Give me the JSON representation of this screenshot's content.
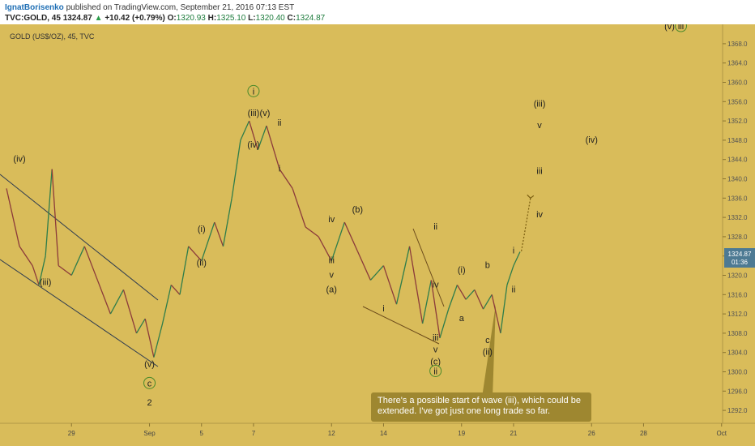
{
  "header": {
    "author": "IgnatBorisenko",
    "published": " published on TradingView.com, September 21, 2016 07:13 EST",
    "ticker": "TVC:GOLD, 45",
    "last": "1324.87",
    "change_arrow": "▲",
    "change": "+10.42 (+0.79%)",
    "o_label": "O:",
    "o": "1320.93",
    "h_label": "H:",
    "h": "1325.10",
    "l_label": "L:",
    "l": "1320.40",
    "c_label": "C:",
    "c": "1324.87"
  },
  "symbol_label": "GOLD (US$/OZ), 45, TVC",
  "price_tag": "1324.87",
  "time_tag": "01:36",
  "note": "There's a possible start of wave (iii), which could be extended. I've got just one long trade so far.",
  "colors": {
    "background": "#d9bc5a",
    "up": "#2e7d4a",
    "down": "#8b3a3a",
    "channel": "#2d3b50",
    "note": "#9e8730",
    "price_tag": "#4d7a93"
  },
  "chart_data": {
    "type": "line",
    "title": "GOLD (US$/OZ), 45, TVC",
    "xlabel": "",
    "ylabel": "",
    "x_ticks": [
      "29",
      "Sep",
      "5",
      "7",
      "12",
      "14",
      "19",
      "21",
      "26",
      "28",
      "Oct"
    ],
    "y_ticks": [
      1292,
      1296,
      1300,
      1304,
      1308,
      1312,
      1316,
      1320,
      1324,
      1328,
      1332,
      1336,
      1340,
      1344,
      1348,
      1352,
      1356,
      1360,
      1364,
      1368
    ],
    "ylim": [
      1290,
      1370
    ],
    "series": [
      {
        "values": [
          [
            "Aug 25",
            1338
          ],
          [
            "Aug 25",
            1326
          ],
          [
            "Aug 26",
            1322
          ],
          [
            "Aug 26",
            1318
          ],
          [
            "Aug 26",
            1324
          ],
          [
            "Aug 26",
            1342
          ],
          [
            "Aug 29",
            1322
          ],
          [
            "Aug 29",
            1320
          ],
          [
            "Aug 30",
            1326
          ],
          [
            "Aug 30",
            1319
          ],
          [
            "Aug 31",
            1312
          ],
          [
            "Aug 31",
            1317
          ],
          [
            "Sep 1",
            1308
          ],
          [
            "Sep 1",
            1311
          ],
          [
            "Sep 1",
            1303
          ],
          [
            "Sep 2",
            1310
          ],
          [
            "Sep 2",
            1318
          ],
          [
            "Sep 2",
            1316
          ],
          [
            "Sep 5",
            1326
          ],
          [
            "Sep 5",
            1323
          ],
          [
            "Sep 6",
            1331
          ],
          [
            "Sep 6",
            1326
          ],
          [
            "Sep 6",
            1336
          ],
          [
            "Sep 7",
            1348
          ],
          [
            "Sep 7",
            1352
          ],
          [
            "Sep 7",
            1346
          ],
          [
            "Sep 8",
            1351
          ],
          [
            "Sep 8",
            1342
          ],
          [
            "Sep 9",
            1338
          ],
          [
            "Sep 9",
            1330
          ],
          [
            "Sep 12",
            1328
          ],
          [
            "Sep 12",
            1323
          ],
          [
            "Sep 13",
            1331
          ],
          [
            "Sep 13",
            1325
          ],
          [
            "Sep 14",
            1319
          ],
          [
            "Sep 14",
            1322
          ],
          [
            "Sep 15",
            1314
          ],
          [
            "Sep 15",
            1326
          ],
          [
            "Sep 16",
            1310
          ],
          [
            "Sep 16",
            1319
          ],
          [
            "Sep 16",
            1307
          ],
          [
            "Sep 19",
            1313
          ],
          [
            "Sep 19",
            1318
          ],
          [
            "Sep 19",
            1315
          ],
          [
            "Sep 20",
            1317
          ],
          [
            "Sep 20",
            1313
          ],
          [
            "Sep 20",
            1316
          ],
          [
            "Sep 21",
            1308
          ],
          [
            "Sep 21",
            1318
          ],
          [
            "Sep 21",
            1322
          ],
          [
            "Sep 21",
            1324.87
          ]
        ]
      }
    ],
    "projection": [
      [
        "Sep 21",
        1325
      ],
      [
        "Sep 21",
        1328
      ],
      [
        "Sep 22",
        1336
      ]
    ],
    "wave_labels": [
      {
        "text": "(iv)",
        "x": "Aug 25",
        "y": 1343.5
      },
      {
        "text": "(iii)",
        "x": "Aug 26",
        "y": 1318
      },
      {
        "text": "(v)",
        "x": "Sep 1",
        "y": 1301
      },
      {
        "text": "c",
        "x": "Sep 1",
        "y": 1297,
        "circled": true
      },
      {
        "text": "2",
        "x": "Sep 1",
        "y": 1293,
        "color": "#b0282a"
      },
      {
        "text": "(i)",
        "x": "Sep 5",
        "y": 1329
      },
      {
        "text": "(ii)",
        "x": "Sep 5",
        "y": 1322
      },
      {
        "text": "i",
        "x": "Sep 7",
        "y": 1357.5,
        "circled": true
      },
      {
        "text": "(iii)",
        "x": "Sep 7",
        "y": 1353
      },
      {
        "text": "(v)",
        "x": "Sep 7",
        "y": 1353
      },
      {
        "text": "(iv)",
        "x": "Sep 7",
        "y": 1346.5
      },
      {
        "text": "ii",
        "x": "Sep 8",
        "y": 1351
      },
      {
        "text": "i",
        "x": "Sep 8",
        "y": 1341.5
      },
      {
        "text": "iv",
        "x": "Sep 12",
        "y": 1331
      },
      {
        "text": "iii",
        "x": "Sep 12",
        "y": 1322.5
      },
      {
        "text": "v",
        "x": "Sep 12",
        "y": 1319.5
      },
      {
        "text": "(a)",
        "x": "Sep 12",
        "y": 1316.5
      },
      {
        "text": "(b)",
        "x": "Sep 13",
        "y": 1333
      },
      {
        "text": "i",
        "x": "Sep 14",
        "y": 1312.5
      },
      {
        "text": "ii",
        "x": "Sep 16",
        "y": 1329.5
      },
      {
        "text": "iv",
        "x": "Sep 16",
        "y": 1317.5
      },
      {
        "text": "iii",
        "x": "Sep 16",
        "y": 1306.5
      },
      {
        "text": "v",
        "x": "Sep 16",
        "y": 1304
      },
      {
        "text": "(c)",
        "x": "Sep 16",
        "y": 1301.5
      },
      {
        "text": "ii",
        "x": "Sep 16",
        "y": 1299.5,
        "circled": true
      },
      {
        "text": "(i)",
        "x": "Sep 19",
        "y": 1320.5
      },
      {
        "text": "a",
        "x": "Sep 19",
        "y": 1310.5
      },
      {
        "text": "b",
        "x": "Sep 20",
        "y": 1321.5
      },
      {
        "text": "i",
        "x": "Sep 21",
        "y": 1324.5
      },
      {
        "text": "ii",
        "x": "Sep 21",
        "y": 1316.5
      },
      {
        "text": "c",
        "x": "Sep 20",
        "y": 1306
      },
      {
        "text": "(ii)",
        "x": "Sep 20",
        "y": 1303.5
      },
      {
        "text": "iv",
        "x": "Sep 22",
        "y": 1332
      },
      {
        "text": "iii",
        "x": "Sep 22",
        "y": 1341
      },
      {
        "text": "(iii)",
        "x": "Sep 22",
        "y": 1355
      },
      {
        "text": "v",
        "x": "Sep 22",
        "y": 1350.5
      },
      {
        "text": "(iv)",
        "x": "Sep 26",
        "y": 1347.5
      },
      {
        "text": "(v)",
        "x": "Sep 29",
        "y": 1371
      },
      {
        "text": "iii",
        "x": "Sep 29",
        "y": 1371,
        "circled": true
      }
    ],
    "grid": false,
    "legend": "none"
  }
}
